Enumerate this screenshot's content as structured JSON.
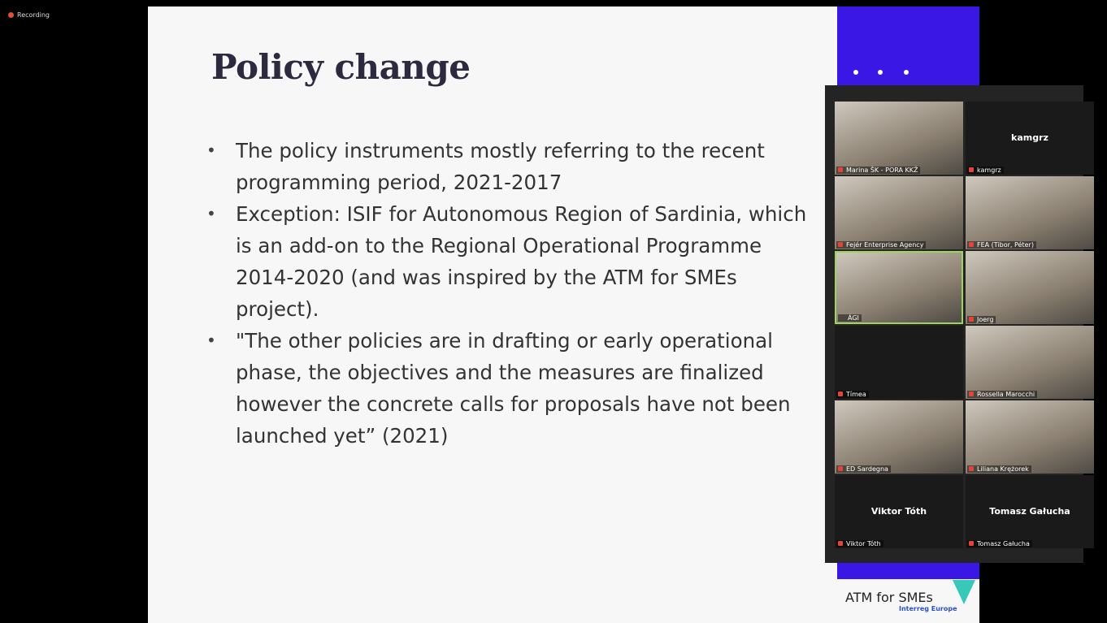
{
  "recording": "Recording",
  "slide": {
    "title": "Policy change",
    "bullets": [
      "The policy instruments mostly referring to the recent programming period, 2021-2017",
      "Exception: ISIF for Autonomous Region of Sardinia, which is an add-on to the Regional Operational Programme 2014-2020 (and was inspired by the ATM for SMEs project).",
      "\"The other policies are in drafting or early operational phase, the objectives and the measures are finalized however the concrete calls for proposals have not been launched yet” (2021)"
    ],
    "logo": {
      "name": "ATM for SMEs",
      "program": "Interreg Europe"
    }
  },
  "participants": [
    {
      "name": "Marina ŠK - PORA KKŽ",
      "video": true
    },
    {
      "name": "kamgrz",
      "video": false
    },
    {
      "name": "Fejér Enterprise Agency",
      "video": true
    },
    {
      "name": "FEA (Tibor, Péter)",
      "video": true
    },
    {
      "name": "ÁGI",
      "video": true,
      "active": true
    },
    {
      "name": "Joerg",
      "video": true
    },
    {
      "name": "Tímea",
      "video": false,
      "hide_center": true
    },
    {
      "name": "Rossella Marocchi",
      "video": true
    },
    {
      "name": "ED Sardegna",
      "video": true
    },
    {
      "name": "Liliana Krężorek",
      "video": true
    },
    {
      "name": "Viktor Tóth",
      "video": false
    },
    {
      "name": "Tomasz Gałucha",
      "video": false
    }
  ]
}
